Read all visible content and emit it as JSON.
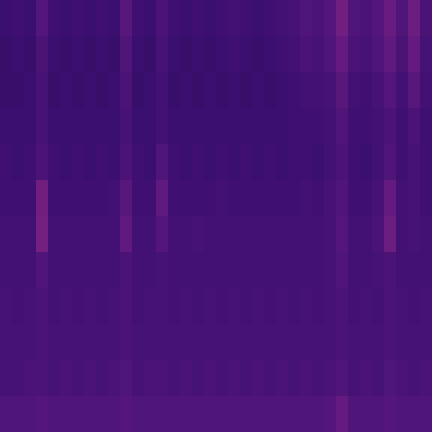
{
  "chart_data": {
    "type": "heatmap",
    "tick_labels": false,
    "zlim": [
      0,
      1
    ],
    "cells": [
      [
        0.2,
        0.21,
        0.2,
        0.26,
        0.21,
        0.2,
        0.21,
        0.2,
        0.21,
        0.2,
        0.27,
        0.21,
        0.2,
        0.24,
        0.21,
        0.2,
        0.21,
        0.2,
        0.21,
        0.22,
        0.21,
        0.2,
        0.21,
        0.22,
        0.23,
        0.25,
        0.24,
        0.26,
        0.33,
        0.25,
        0.24,
        0.26,
        0.31,
        0.25,
        0.32,
        0.24
      ],
      [
        0.19,
        0.2,
        0.19,
        0.24,
        0.2,
        0.19,
        0.2,
        0.19,
        0.2,
        0.19,
        0.25,
        0.2,
        0.19,
        0.23,
        0.2,
        0.19,
        0.2,
        0.19,
        0.2,
        0.21,
        0.2,
        0.19,
        0.2,
        0.21,
        0.22,
        0.24,
        0.23,
        0.25,
        0.3,
        0.24,
        0.23,
        0.25,
        0.29,
        0.24,
        0.3,
        0.23
      ],
      [
        0.19,
        0.19,
        0.2,
        0.23,
        0.19,
        0.2,
        0.19,
        0.2,
        0.19,
        0.2,
        0.24,
        0.19,
        0.2,
        0.22,
        0.19,
        0.2,
        0.19,
        0.2,
        0.19,
        0.2,
        0.19,
        0.2,
        0.19,
        0.2,
        0.21,
        0.22,
        0.22,
        0.23,
        0.27,
        0.22,
        0.21,
        0.23,
        0.26,
        0.22,
        0.27,
        0.22
      ],
      [
        0.2,
        0.2,
        0.2,
        0.23,
        0.2,
        0.2,
        0.2,
        0.2,
        0.2,
        0.2,
        0.23,
        0.2,
        0.2,
        0.22,
        0.2,
        0.2,
        0.2,
        0.2,
        0.2,
        0.2,
        0.2,
        0.2,
        0.2,
        0.2,
        0.21,
        0.21,
        0.21,
        0.22,
        0.25,
        0.21,
        0.21,
        0.22,
        0.24,
        0.21,
        0.24,
        0.21
      ],
      [
        0.21,
        0.2,
        0.21,
        0.24,
        0.21,
        0.2,
        0.21,
        0.2,
        0.21,
        0.2,
        0.24,
        0.21,
        0.2,
        0.25,
        0.21,
        0.2,
        0.21,
        0.2,
        0.21,
        0.2,
        0.21,
        0.2,
        0.21,
        0.2,
        0.21,
        0.21,
        0.2,
        0.22,
        0.24,
        0.21,
        0.2,
        0.22,
        0.25,
        0.21,
        0.23,
        0.21
      ],
      [
        0.21,
        0.21,
        0.21,
        0.33,
        0.21,
        0.21,
        0.21,
        0.21,
        0.21,
        0.22,
        0.27,
        0.21,
        0.21,
        0.29,
        0.21,
        0.21,
        0.21,
        0.21,
        0.22,
        0.21,
        0.21,
        0.21,
        0.21,
        0.21,
        0.21,
        0.22,
        0.21,
        0.23,
        0.25,
        0.21,
        0.21,
        0.23,
        0.3,
        0.22,
        0.23,
        0.21
      ],
      [
        0.22,
        0.22,
        0.22,
        0.34,
        0.22,
        0.22,
        0.22,
        0.22,
        0.22,
        0.22,
        0.29,
        0.22,
        0.22,
        0.26,
        0.22,
        0.22,
        0.23,
        0.22,
        0.22,
        0.22,
        0.22,
        0.22,
        0.22,
        0.22,
        0.22,
        0.22,
        0.22,
        0.23,
        0.26,
        0.22,
        0.22,
        0.24,
        0.32,
        0.22,
        0.23,
        0.22
      ],
      [
        0.22,
        0.22,
        0.22,
        0.25,
        0.22,
        0.22,
        0.22,
        0.22,
        0.22,
        0.22,
        0.24,
        0.22,
        0.22,
        0.23,
        0.22,
        0.22,
        0.22,
        0.22,
        0.22,
        0.22,
        0.22,
        0.22,
        0.22,
        0.22,
        0.22,
        0.22,
        0.22,
        0.23,
        0.25,
        0.22,
        0.22,
        0.23,
        0.24,
        0.22,
        0.22,
        0.22
      ],
      [
        0.23,
        0.22,
        0.23,
        0.24,
        0.22,
        0.23,
        0.22,
        0.23,
        0.22,
        0.23,
        0.24,
        0.22,
        0.23,
        0.23,
        0.22,
        0.23,
        0.22,
        0.23,
        0.22,
        0.23,
        0.22,
        0.23,
        0.22,
        0.23,
        0.22,
        0.23,
        0.22,
        0.23,
        0.24,
        0.22,
        0.23,
        0.22,
        0.24,
        0.23,
        0.22,
        0.23
      ],
      [
        0.23,
        0.23,
        0.23,
        0.24,
        0.23,
        0.23,
        0.23,
        0.23,
        0.23,
        0.23,
        0.24,
        0.23,
        0.23,
        0.23,
        0.23,
        0.23,
        0.23,
        0.23,
        0.23,
        0.23,
        0.23,
        0.23,
        0.23,
        0.23,
        0.23,
        0.23,
        0.23,
        0.23,
        0.24,
        0.23,
        0.23,
        0.23,
        0.24,
        0.23,
        0.23,
        0.23
      ],
      [
        0.23,
        0.23,
        0.24,
        0.24,
        0.23,
        0.24,
        0.23,
        0.24,
        0.23,
        0.24,
        0.25,
        0.23,
        0.24,
        0.24,
        0.23,
        0.24,
        0.23,
        0.24,
        0.23,
        0.24,
        0.23,
        0.24,
        0.23,
        0.24,
        0.23,
        0.24,
        0.23,
        0.24,
        0.25,
        0.23,
        0.24,
        0.23,
        0.25,
        0.24,
        0.23,
        0.24
      ],
      [
        0.25,
        0.25,
        0.25,
        0.26,
        0.25,
        0.25,
        0.25,
        0.25,
        0.25,
        0.25,
        0.26,
        0.25,
        0.25,
        0.25,
        0.25,
        0.25,
        0.25,
        0.25,
        0.25,
        0.25,
        0.25,
        0.25,
        0.25,
        0.25,
        0.25,
        0.25,
        0.25,
        0.26,
        0.3,
        0.25,
        0.25,
        0.25,
        0.26,
        0.25,
        0.25,
        0.25
      ]
    ]
  }
}
